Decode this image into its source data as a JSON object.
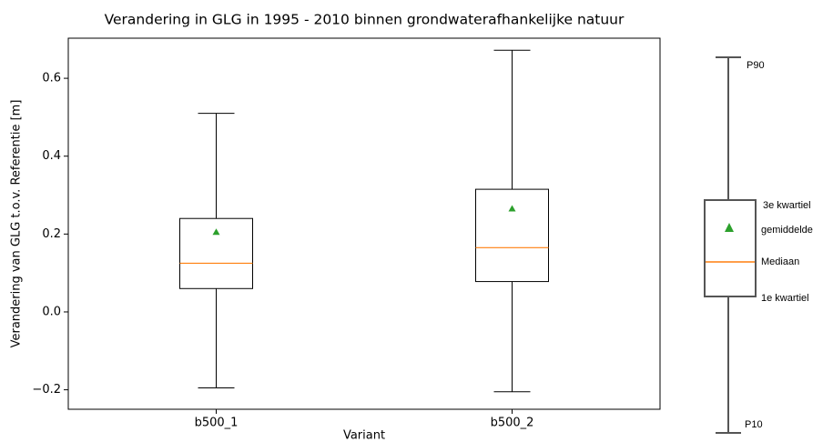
{
  "chart_data": {
    "type": "box",
    "title": "Verandering in GLG in 1995 - 2010 binnen grondwaterafhankelijke natuur",
    "x_label": "Variant",
    "y_label": "Verandering van GLG t.o.v. Referentie [m]",
    "categories": [
      "b500_1",
      "b500_2"
    ],
    "boxes": [
      {
        "low": -0.195,
        "q1": 0.06,
        "median": 0.125,
        "q3": 0.24,
        "high": 0.51,
        "mean": 0.205
      },
      {
        "low": -0.205,
        "q1": 0.078,
        "median": 0.165,
        "q3": 0.315,
        "high": 0.672,
        "mean": 0.265
      }
    ],
    "box_color": "#000000",
    "median_color": "#ff7f0e",
    "mean_color": "#2ca02c",
    "ylim": [
      -0.25,
      0.703
    ],
    "yticks": [
      {
        "value": -0.2,
        "label": "−0.2"
      },
      {
        "value": 0,
        "label": "0.0"
      },
      0.2,
      0.4,
      0.6
    ]
  },
  "legend_diagram": {
    "labels": [
      "P90",
      "3e kwartiel",
      "gemiddelde",
      "Mediaan",
      "1e kwartiel",
      "P10"
    ]
  }
}
